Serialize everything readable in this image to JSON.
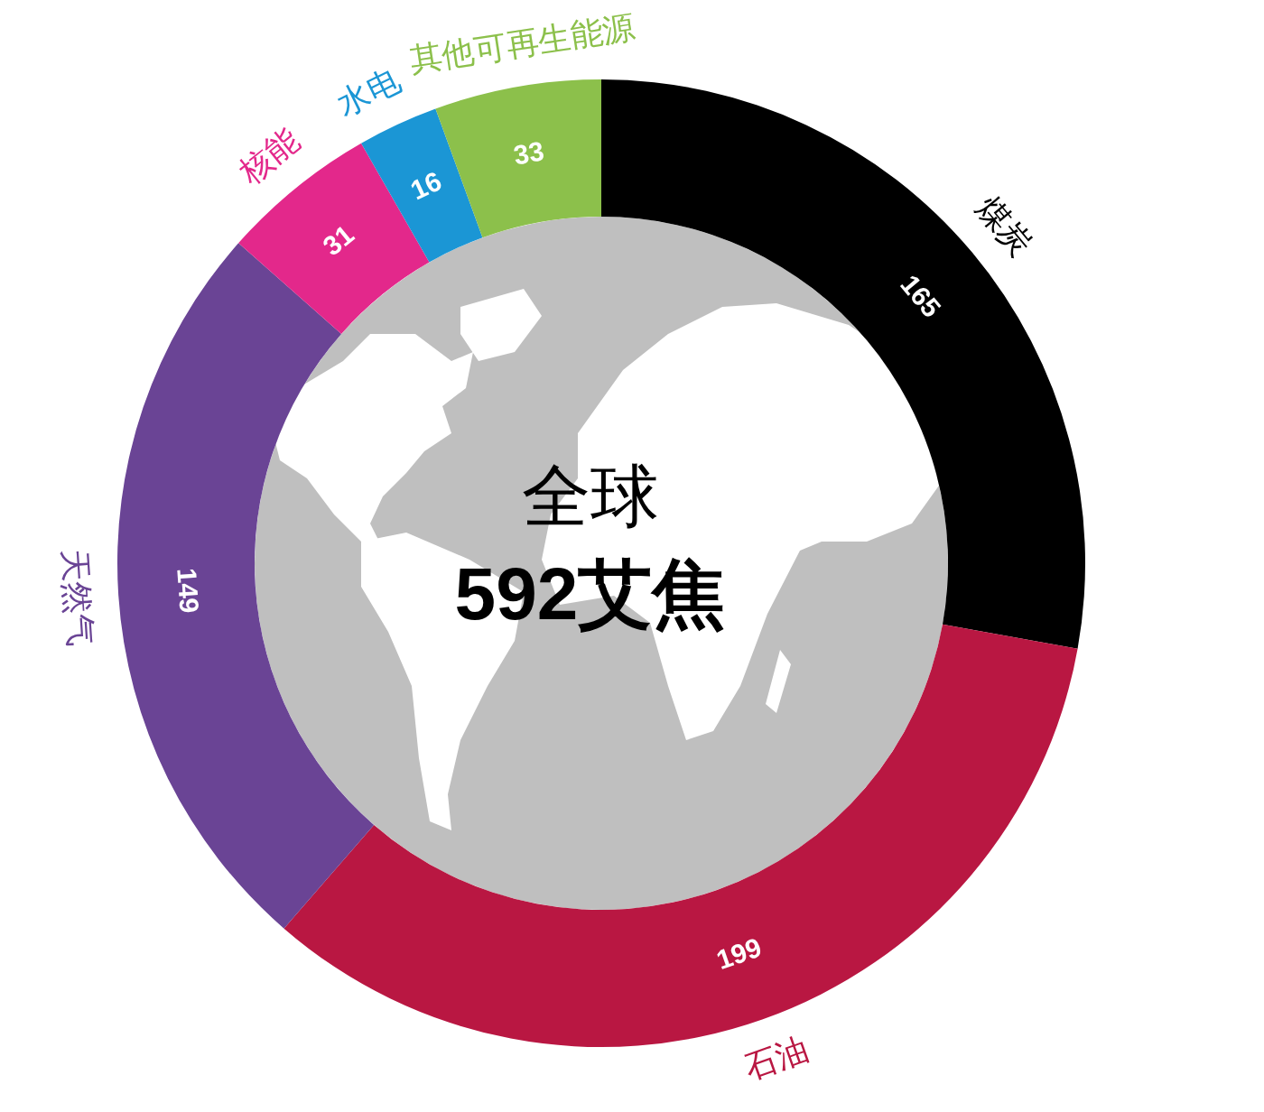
{
  "chart_data": {
    "type": "donut",
    "categories": [
      "煤炭",
      "石油",
      "天然气",
      "核能",
      "水电",
      "其他可再生能源"
    ],
    "values": [
      165,
      199,
      149,
      31,
      16,
      33
    ],
    "colors": [
      "#000000",
      "#b91742",
      "#6a4495",
      "#e3288b",
      "#1b96d5",
      "#8cc04b"
    ],
    "data_labels": true,
    "annotations": [
      "全球",
      "592艾焦"
    ]
  }
}
